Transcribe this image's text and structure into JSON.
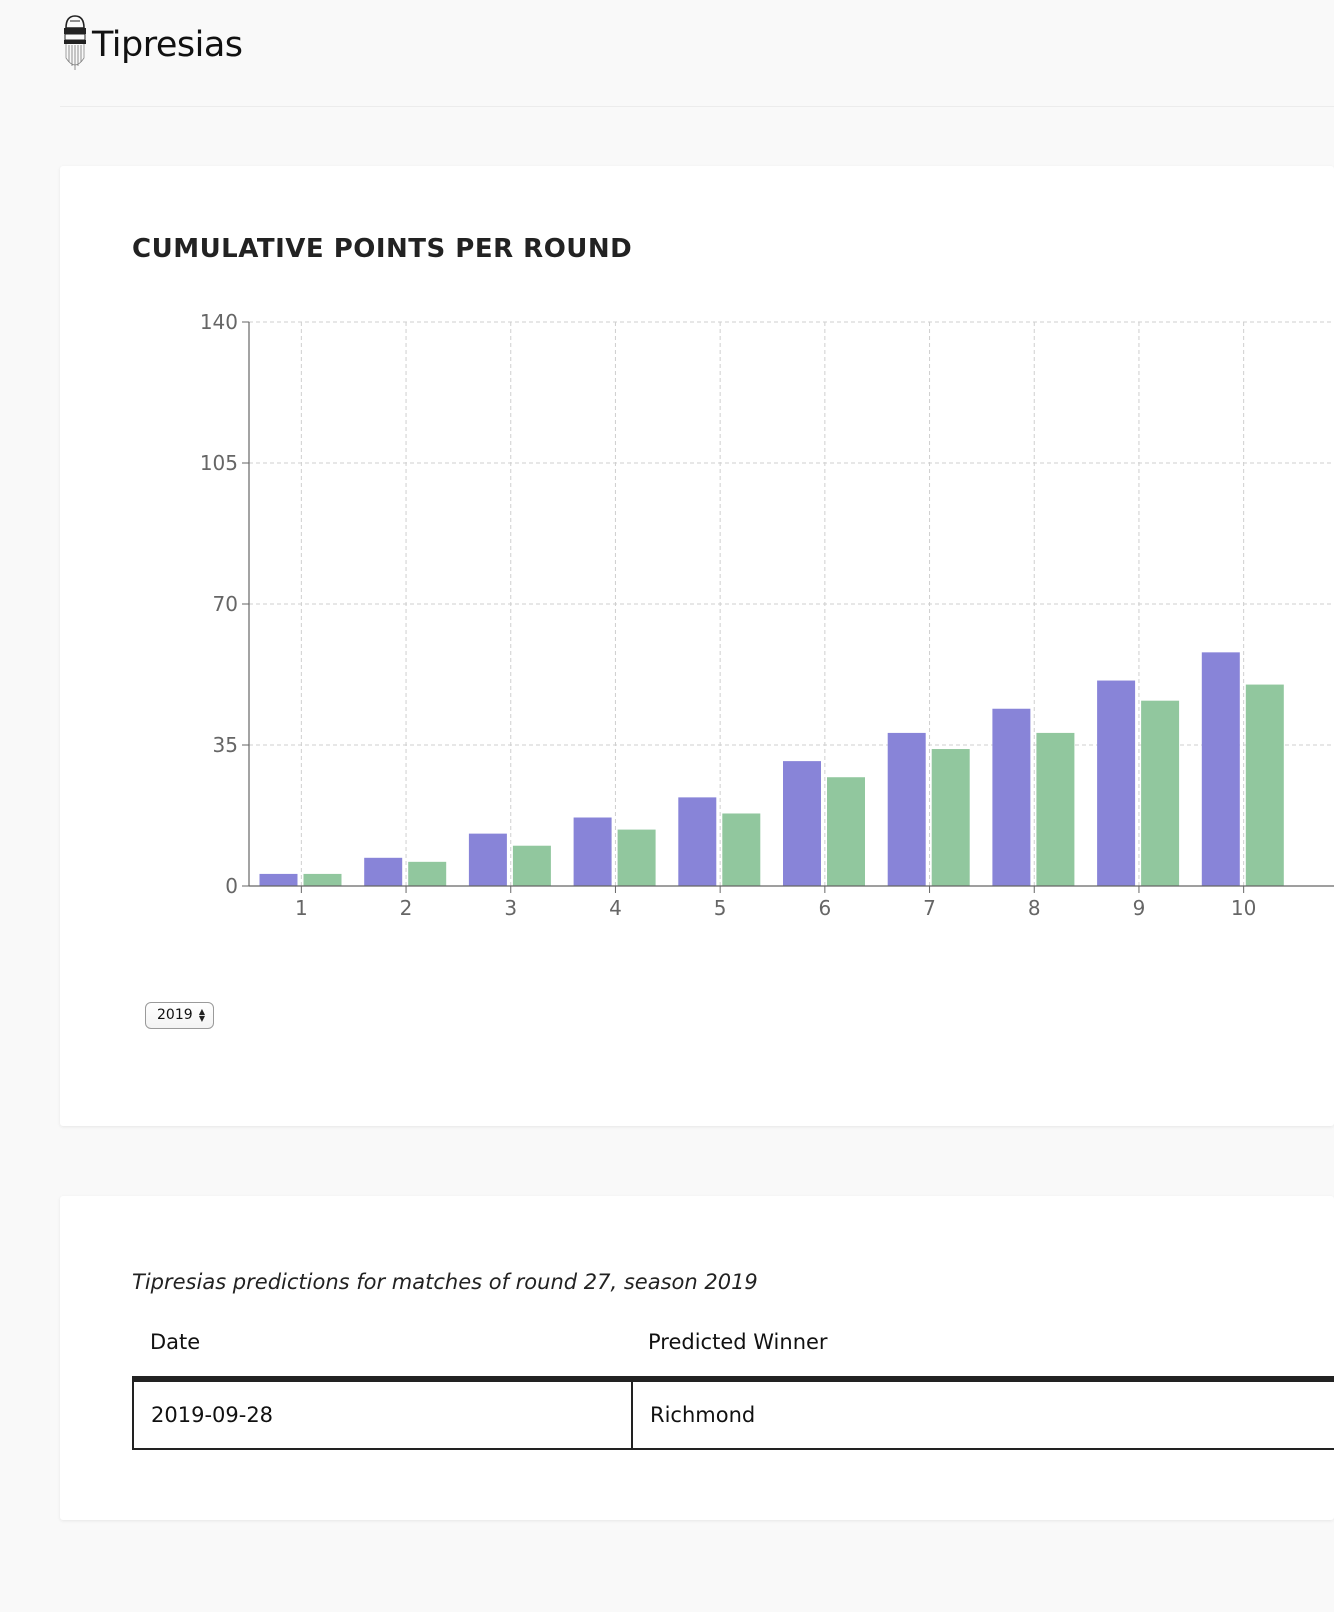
{
  "app": {
    "title": "Tipresias",
    "logo_icon": "bust-statue-icon"
  },
  "chart_section": {
    "title": "CUMULATIVE POINTS PER ROUND",
    "season_select": {
      "value": "2019",
      "icon": "updown-arrows-icon"
    }
  },
  "chart_data": {
    "type": "bar",
    "title": "CUMULATIVE POINTS PER ROUND",
    "xlabel": "",
    "ylabel": "",
    "categories": [
      "1",
      "2",
      "3",
      "4",
      "5",
      "6",
      "7",
      "8",
      "9",
      "10"
    ],
    "series": [
      {
        "color": "#8884d8",
        "values": [
          3,
          7,
          13,
          17,
          22,
          31,
          38,
          44,
          51,
          58
        ]
      },
      {
        "color": "#91c79e",
        "values": [
          3,
          6,
          10,
          14,
          18,
          27,
          34,
          38,
          46,
          50
        ]
      }
    ],
    "ylim": [
      0,
      140
    ],
    "yticks": [
      "0",
      "35",
      "70",
      "105",
      "140"
    ],
    "grid": true,
    "grid_style": "dashed"
  },
  "predictions": {
    "caption": "Tipresias predictions for matches of round 27, season 2019",
    "columns": [
      "Date",
      "Predicted Winner"
    ],
    "rows": [
      {
        "date": "2019-09-28",
        "winner": "Richmond"
      }
    ]
  }
}
